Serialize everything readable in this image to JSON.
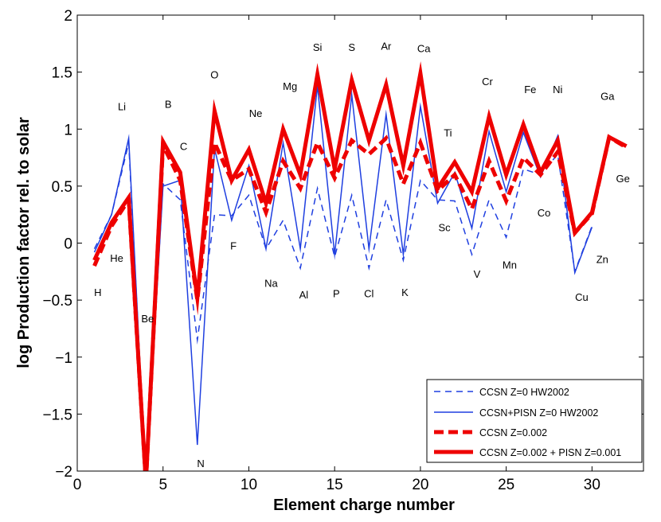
{
  "chart_data": {
    "type": "line",
    "xlabel": "Element charge number",
    "ylabel": "log Production factor rel. to solar",
    "xlim": [
      0,
      33
    ],
    "ylim": [
      -2,
      2
    ],
    "xticks": [
      0,
      5,
      10,
      15,
      20,
      25,
      30
    ],
    "yticks": [
      -2,
      -1.5,
      -1,
      -0.5,
      0,
      0.5,
      1,
      1.5,
      2
    ],
    "xtick_labels": [
      "0",
      "5",
      "10",
      "15",
      "20",
      "25",
      "30"
    ],
    "ytick_labels": [
      "−2",
      "−1.5",
      "−1",
      "−0.5",
      "0",
      "0.5",
      "1",
      "1.5",
      "2"
    ],
    "grid": false,
    "legend_position": "bottom-right",
    "series": [
      {
        "name": "CCSN Z=0 HW2002",
        "color": "#1f3fe0",
        "style": "dashed",
        "width": "thin",
        "x": [
          1,
          2,
          3,
          4,
          5,
          6,
          7,
          8,
          9,
          10,
          11,
          12,
          13,
          14,
          15,
          16,
          17,
          18,
          19,
          20,
          21,
          22,
          23,
          24,
          25,
          26,
          27,
          28,
          29,
          30
        ],
        "y": [
          -0.05,
          0.25,
          0.88,
          -2.1,
          0.52,
          0.38,
          -0.85,
          0.25,
          0.24,
          0.42,
          -0.05,
          0.2,
          -0.22,
          0.48,
          -0.12,
          0.42,
          -0.22,
          0.38,
          -0.15,
          0.55,
          0.38,
          0.37,
          -0.1,
          0.38,
          0.05,
          0.65,
          0.6,
          0.78,
          -0.25,
          0.15
        ]
      },
      {
        "name": "CCSN+PISN Z=0 HW2002",
        "color": "#1f3fe0",
        "style": "solid",
        "width": "thin",
        "x": [
          1,
          2,
          3,
          4,
          5,
          6,
          7,
          8,
          9,
          10,
          11,
          12,
          13,
          14,
          15,
          16,
          17,
          18,
          19,
          20,
          21,
          22,
          23,
          24,
          25,
          26,
          27,
          28,
          29,
          30
        ],
        "y": [
          -0.08,
          0.25,
          0.92,
          -2.1,
          0.5,
          0.55,
          -1.77,
          0.83,
          0.2,
          0.68,
          -0.05,
          0.88,
          -0.05,
          1.38,
          -0.1,
          1.3,
          -0.05,
          1.13,
          -0.1,
          1.2,
          0.35,
          0.62,
          0.13,
          0.98,
          0.45,
          0.97,
          0.58,
          0.94,
          -0.26,
          0.14
        ]
      },
      {
        "name": "CCSN Z=0.002",
        "color": "#ee0000",
        "style": "dashed",
        "width": "thick",
        "x": [
          1,
          2,
          3,
          4,
          5,
          6,
          7,
          8,
          9,
          10,
          11,
          12,
          13,
          14,
          15,
          16,
          17,
          18,
          19,
          20,
          21,
          22,
          23,
          24,
          25,
          26,
          27,
          28,
          29,
          30,
          31,
          32
        ],
        "y": [
          -0.2,
          0.15,
          0.38,
          -2.1,
          0.86,
          0.55,
          -0.5,
          0.88,
          0.55,
          0.65,
          0.27,
          0.72,
          0.48,
          0.88,
          0.57,
          0.9,
          0.78,
          0.92,
          0.52,
          0.88,
          0.46,
          0.6,
          0.3,
          0.72,
          0.37,
          0.75,
          0.6,
          0.8,
          0.09,
          0.26,
          0.93,
          0.84
        ]
      },
      {
        "name": "CCSN Z=0.002 + PISN Z=0.001",
        "color": "#ee0000",
        "style": "solid",
        "width": "thick",
        "x": [
          1,
          2,
          3,
          4,
          5,
          6,
          7,
          8,
          9,
          10,
          11,
          12,
          13,
          14,
          15,
          16,
          17,
          18,
          19,
          20,
          21,
          22,
          23,
          24,
          25,
          26,
          27,
          28,
          29,
          30,
          31,
          32
        ],
        "y": [
          -0.15,
          0.18,
          0.4,
          -2.1,
          0.89,
          0.62,
          -0.48,
          1.16,
          0.55,
          0.82,
          0.35,
          1.0,
          0.6,
          1.48,
          0.65,
          1.43,
          0.9,
          1.39,
          0.68,
          1.49,
          0.48,
          0.71,
          0.45,
          1.11,
          0.6,
          1.04,
          0.62,
          0.9,
          0.09,
          0.27,
          0.93,
          0.85
        ]
      }
    ],
    "element_labels": [
      {
        "text": "H",
        "x": 1.2,
        "y": -0.43
      },
      {
        "text": "He",
        "x": 2.3,
        "y": -0.13
      },
      {
        "text": "Li",
        "x": 2.6,
        "y": 1.2
      },
      {
        "text": "Be",
        "x": 4.1,
        "y": -0.66
      },
      {
        "text": "B",
        "x": 5.3,
        "y": 1.22
      },
      {
        "text": "C",
        "x": 6.2,
        "y": 0.85
      },
      {
        "text": "N",
        "x": 7.2,
        "y": -1.93
      },
      {
        "text": "O",
        "x": 8.0,
        "y": 1.48
      },
      {
        "text": "F",
        "x": 9.1,
        "y": -0.02
      },
      {
        "text": "Ne",
        "x": 10.4,
        "y": 1.14
      },
      {
        "text": "Na",
        "x": 11.3,
        "y": -0.35
      },
      {
        "text": "Mg",
        "x": 12.4,
        "y": 1.38
      },
      {
        "text": "Al",
        "x": 13.2,
        "y": -0.45
      },
      {
        "text": "Si",
        "x": 14.0,
        "y": 1.72
      },
      {
        "text": "P",
        "x": 15.1,
        "y": -0.44
      },
      {
        "text": "S",
        "x": 16.0,
        "y": 1.72
      },
      {
        "text": "Cl",
        "x": 17.0,
        "y": -0.44
      },
      {
        "text": "Ar",
        "x": 18.0,
        "y": 1.73
      },
      {
        "text": "K",
        "x": 19.1,
        "y": -0.43
      },
      {
        "text": "Ca",
        "x": 20.2,
        "y": 1.71
      },
      {
        "text": "Sc",
        "x": 21.4,
        "y": 0.14
      },
      {
        "text": "Ti",
        "x": 21.6,
        "y": 0.97
      },
      {
        "text": "V",
        "x": 23.3,
        "y": -0.27
      },
      {
        "text": "Cr",
        "x": 23.9,
        "y": 1.42
      },
      {
        "text": "Mn",
        "x": 25.2,
        "y": -0.19
      },
      {
        "text": "Fe",
        "x": 26.4,
        "y": 1.35
      },
      {
        "text": "Co",
        "x": 27.2,
        "y": 0.27
      },
      {
        "text": "Ni",
        "x": 28.0,
        "y": 1.35
      },
      {
        "text": "Cu",
        "x": 29.4,
        "y": -0.47
      },
      {
        "text": "Zn",
        "x": 30.6,
        "y": -0.14
      },
      {
        "text": "Ga",
        "x": 30.9,
        "y": 1.29
      },
      {
        "text": "Ge",
        "x": 31.8,
        "y": 0.57
      }
    ]
  }
}
